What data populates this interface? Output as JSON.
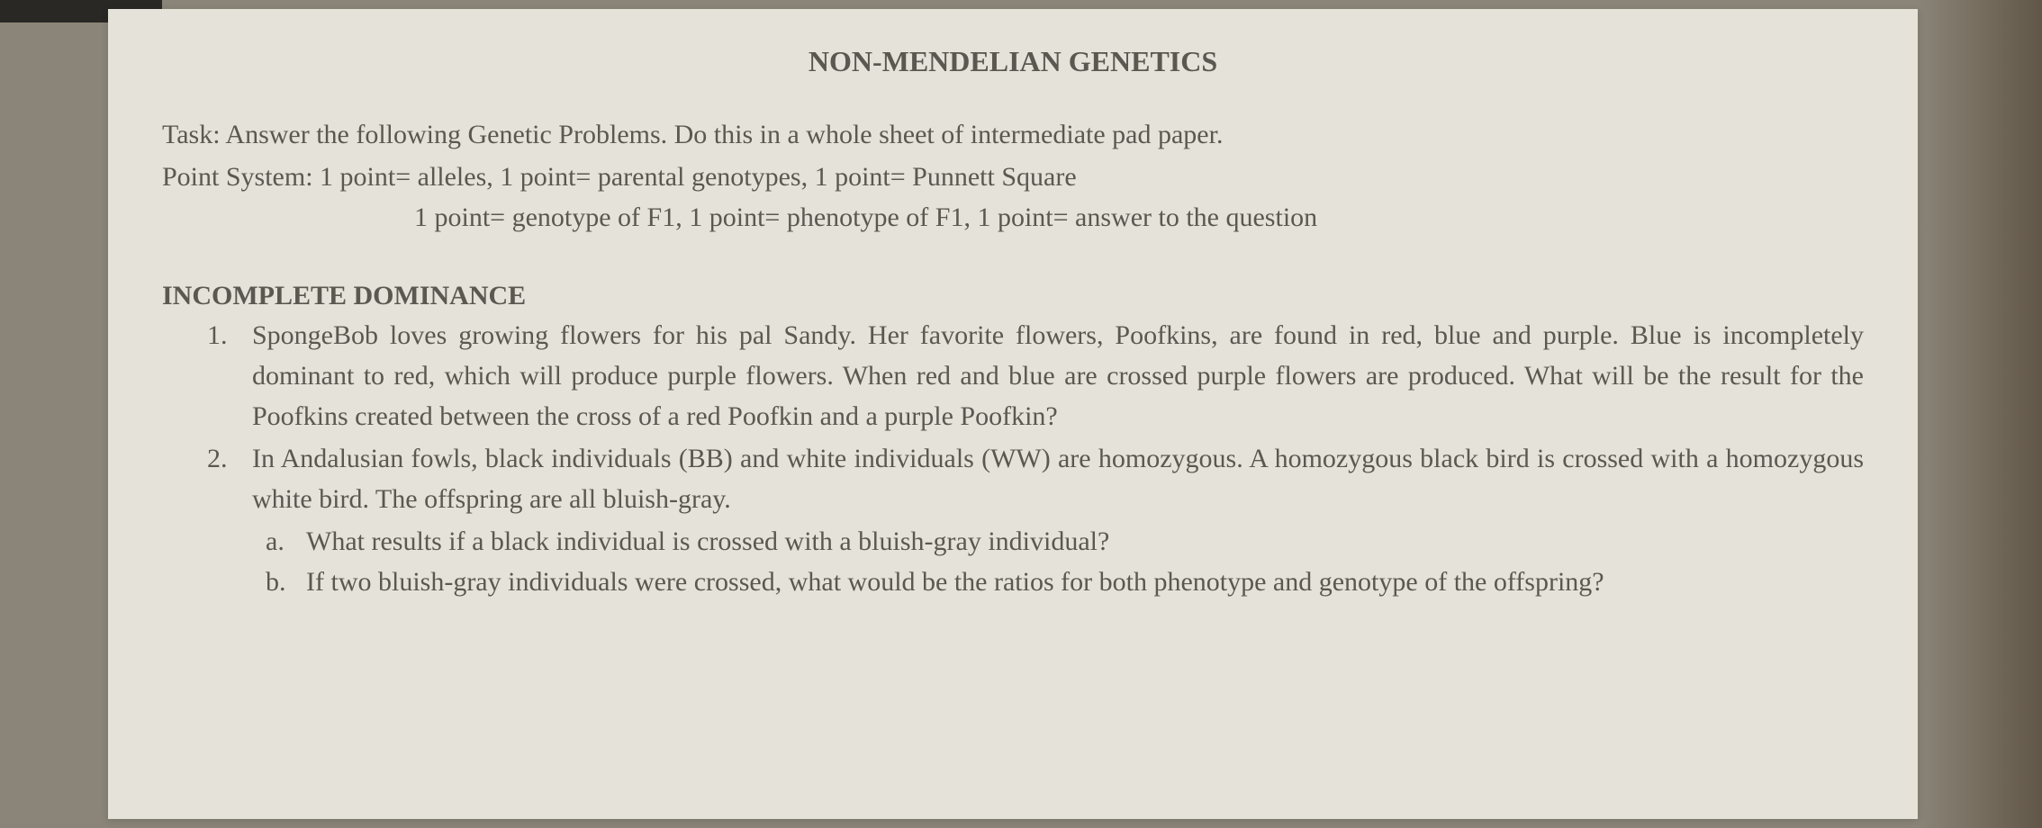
{
  "title": "NON-MENDELIAN GENETICS",
  "task": "Task: Answer the following Genetic Problems. Do this in a whole sheet of intermediate pad paper.",
  "pointSystem1": "Point System: 1 point= alleles, 1 point= parental genotypes, 1 point= Punnett Square",
  "pointSystem2": "1 point= genotype of F1, 1 point= phenotype of F1, 1 point= answer to the question",
  "sectionHeader": "INCOMPLETE DOMINANCE",
  "questions": [
    {
      "number": "1.",
      "text": "SpongeBob loves growing flowers for his pal Sandy. Her favorite flowers, Poofkins, are found in red, blue and purple. Blue is incompletely dominant to red, which will produce purple flowers. When red and blue are crossed purple flowers are produced. What will be the result for the Poofkins created between the cross of a red Poofkin and a purple Poofkin?"
    },
    {
      "number": "2.",
      "text": "In Andalusian fowls, black individuals (BB) and white individuals (WW) are homozygous. A homozygous black bird is crossed with a homozygous white bird. The offspring are all bluish-gray.",
      "subitems": [
        {
          "letter": "a.",
          "text": "What results if a black individual is crossed with a bluish-gray individual?"
        },
        {
          "letter": "b.",
          "text": "If two bluish-gray individuals were crossed, what would be the ratios for both phenotype and genotype of the offspring?"
        }
      ]
    }
  ],
  "styling": {
    "paper_bg": "#e5e2d9",
    "text_color": "#5a5850",
    "body_bg": "#8a8578",
    "title_fontsize": 32,
    "body_fontsize": 30,
    "font_family": "Georgia, serif"
  }
}
